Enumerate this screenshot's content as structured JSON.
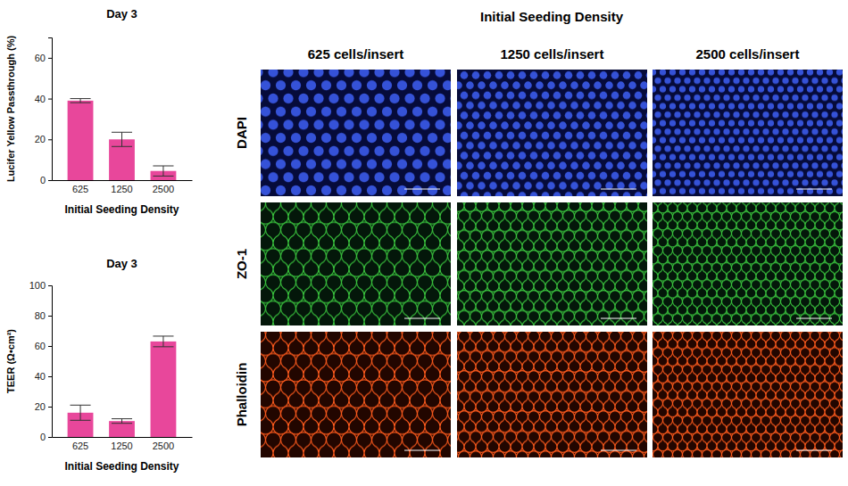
{
  "chart_data": [
    {
      "type": "bar",
      "title": "Day 3",
      "x_label": "Initial Seeding Density",
      "y_label": "Lucifer Yellow Passthrough (%)",
      "categories": [
        "625",
        "1250",
        "2500"
      ],
      "values": [
        39,
        20,
        4.5
      ],
      "errors": [
        1,
        3.5,
        2.5
      ],
      "color": "#e8479b",
      "ylim": [
        0,
        70
      ],
      "yticks": [
        0,
        20,
        40,
        60
      ],
      "grid": false
    },
    {
      "type": "bar",
      "title": "Day 3",
      "x_label": "Initial Seeding Density",
      "y_label": "TEER (Ω•cm²)",
      "categories": [
        "625",
        "1250",
        "2500"
      ],
      "values": [
        16,
        10.5,
        63
      ],
      "errors": [
        5,
        1.5,
        3.5
      ],
      "color": "#e8479b",
      "ylim": [
        0,
        100
      ],
      "yticks": [
        0,
        20,
        40,
        60,
        80,
        100
      ],
      "grid": false
    }
  ],
  "figure": {
    "title": "Initial Seeding Density",
    "columns": [
      "625 cells/insert",
      "1250 cells/insert",
      "2500 cells/insert"
    ],
    "rows": [
      "DAPI",
      "ZO-1",
      "Phalloidin"
    ]
  }
}
